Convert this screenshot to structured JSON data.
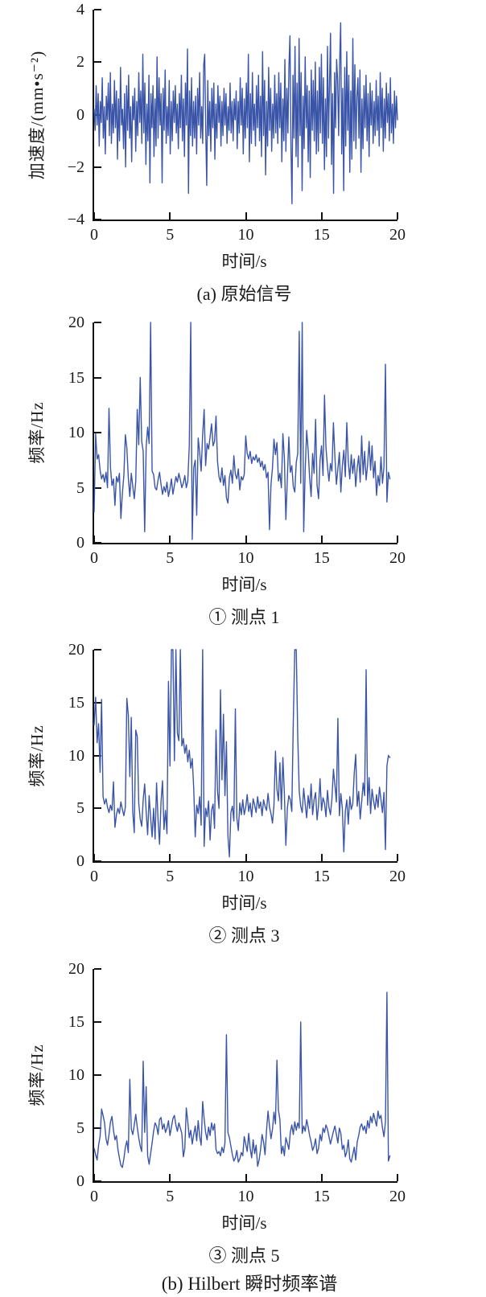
{
  "figure": {
    "line_color": "#3a55a8",
    "axis_color": "#111111",
    "group_caption": "(b) Hilbert 瞬时频率谱",
    "chart_data": [
      {
        "id": "original-signal",
        "type": "line",
        "title": "(a) 原始信号",
        "xlabel": "时间/s",
        "ylabel": "加速度/(mm•s⁻²)",
        "xlim": [
          0,
          20
        ],
        "ylim": [
          -4,
          4
        ],
        "grid": false,
        "legend": "none",
        "x_ticks": [
          {
            "v": 0,
            "label": "0"
          },
          {
            "v": 5,
            "label": "5"
          },
          {
            "v": 10,
            "label": "10"
          },
          {
            "v": 15,
            "label": "15"
          },
          {
            "v": 20,
            "label": "20"
          }
        ],
        "y_ticks": [
          {
            "v": -4,
            "label": "−4"
          },
          {
            "v": -2,
            "label": "−2"
          },
          {
            "v": 0,
            "label": "0"
          },
          {
            "v": 2,
            "label": "2"
          },
          {
            "v": 4,
            "label": "4"
          }
        ],
        "x_start": 0,
        "x_end": 20,
        "values": [
          0.2,
          -0.6,
          1.1,
          -0.4,
          0.8,
          -1.2,
          0.5,
          -0.3,
          1.4,
          -0.9,
          0.3,
          -1.5,
          0.7,
          -0.2,
          1.2,
          -0.8,
          1.6,
          -1.1,
          0.4,
          -0.7,
          1.3,
          -0.5,
          0.9,
          -1.7,
          0.6,
          -1.0,
          1.8,
          -0.4,
          0.2,
          -1.3,
          0.8,
          -2.0,
          1.1,
          -0.6,
          1.5,
          -0.9,
          0.3,
          -1.8,
          0.7,
          -0.2,
          1.0,
          -1.4,
          0.5,
          -0.8,
          1.6,
          -0.3,
          0.9,
          -1.1,
          2.3,
          -0.7,
          1.2,
          -1.9,
          0.4,
          -1.0,
          1.5,
          -2.6,
          0.8,
          -0.5,
          1.1,
          -1.6,
          0.6,
          -1.2,
          2.2,
          -0.9,
          1.4,
          -0.4,
          0.8,
          -2.6,
          1.0,
          -0.6,
          1.7,
          -1.1,
          0.3,
          -0.8,
          1.3,
          -1.5,
          0.5,
          -1.0,
          0.9,
          -0.3,
          1.1,
          -0.7,
          0.4,
          -1.3,
          0.8,
          -0.5,
          1.5,
          -1.0,
          0.6,
          -1.6,
          1.2,
          -0.4,
          2.5,
          -3.0,
          0.9,
          -0.8,
          1.4,
          -1.2,
          0.5,
          -0.9,
          0.7,
          -1.5,
          1.0,
          -0.4,
          1.6,
          -0.9,
          0.3,
          -1.1,
          1.9,
          2.3,
          -0.6,
          -2.7,
          1.3,
          -0.8,
          0.5,
          -1.4,
          1.0,
          -0.5,
          1.2,
          -1.7,
          0.4,
          -0.9,
          1.1,
          -0.3,
          0.7,
          -1.2,
          0.5,
          -0.8,
          1.0,
          -0.4,
          0.8,
          -1.1,
          0.3,
          -0.6,
          1.2,
          -0.7,
          0.5,
          -1.0,
          0.6,
          -0.2,
          0.9,
          -1.3,
          0.5,
          -0.7,
          1.4,
          -0.4,
          1.0,
          -1.5,
          0.6,
          -0.9,
          1.2,
          -0.5,
          2.3,
          -1.8,
          0.8,
          -1.1,
          1.6,
          -0.6,
          0.4,
          -1.2,
          1.1,
          -0.5,
          1.5,
          -1.0,
          0.7,
          -1.6,
          2.4,
          -0.8,
          1.3,
          -2.3,
          0.5,
          -1.2,
          1.8,
          -0.6,
          1.0,
          -1.4,
          0.4,
          -0.9,
          1.5,
          -0.7,
          0.8,
          -1.1,
          1.6,
          -0.5,
          1.2,
          -1.8,
          0.6,
          -1.0,
          2.1,
          -1.4,
          1.0,
          -0.7,
          1.8,
          3.0,
          -1.2,
          -3.4,
          1.5,
          -0.9,
          2.6,
          -1.6,
          1.2,
          -2.0,
          2.9,
          -0.8,
          1.6,
          -2.9,
          0.7,
          -1.3,
          2.2,
          -0.5,
          1.1,
          -1.8,
          0.9,
          -2.4,
          1.7,
          -0.6,
          1.3,
          -1.0,
          2.0,
          -1.5,
          0.9,
          -1.4,
          1.8,
          -0.7,
          2.3,
          -1.1,
          1.4,
          -2.1,
          0.6,
          -1.6,
          2.6,
          -0.9,
          1.2,
          3.1,
          -1.9,
          0.8,
          -3.0,
          1.6,
          -0.5,
          2.1,
          1.3,
          -0.8,
          2.0,
          3.5,
          -1.5,
          1.0,
          -2.9,
          1.8,
          -1.2,
          2.4,
          -0.6,
          1.5,
          -2.2,
          0.9,
          -1.7,
          2.9,
          -1.0,
          1.9,
          -1.3,
          0.7,
          1.4,
          -0.9,
          1.7,
          -2.2,
          0.6,
          -1.3,
          1.1,
          -0.5,
          1.5,
          -1.0,
          0.8,
          -1.6,
          1.2,
          -0.4,
          0.9,
          -1.1,
          0.5,
          -0.8,
          1.3,
          -0.6,
          0.7,
          -1.2,
          1.6,
          -0.5,
          1.0,
          -1.4,
          0.6,
          -0.9,
          1.2,
          -0.3,
          0.8,
          -1.0,
          1.4,
          -0.7,
          0.4,
          -1.1,
          0.9,
          -0.5,
          0.7,
          -0.2
        ]
      },
      {
        "id": "point-1",
        "type": "line",
        "title": "① 测点 1",
        "xlabel": "时间/s",
        "ylabel": "频率/Hz",
        "xlim": [
          0,
          20
        ],
        "ylim": [
          0,
          20
        ],
        "grid": false,
        "legend": "none",
        "x_ticks": [
          {
            "v": 0,
            "label": "0"
          },
          {
            "v": 5,
            "label": "5"
          },
          {
            "v": 10,
            "label": "10"
          },
          {
            "v": 15,
            "label": "15"
          },
          {
            "v": 20,
            "label": "20"
          }
        ],
        "y_ticks": [
          {
            "v": 0,
            "label": "0"
          },
          {
            "v": 5,
            "label": "5"
          },
          {
            "v": 10,
            "label": "10"
          },
          {
            "v": 15,
            "label": "15"
          },
          {
            "v": 20,
            "label": "20"
          }
        ],
        "x_start": 0,
        "x_end": 19.5,
        "values": [
          2.8,
          9.9,
          7.6,
          8.0,
          6.6,
          5.8,
          6.2,
          5.5,
          6.4,
          5.0,
          12.2,
          6.8,
          5.2,
          5.8,
          3.4,
          6.0,
          5.5,
          6.3,
          2.2,
          4.5,
          6.1,
          9.8,
          8.6,
          5.9,
          4.2,
          6.3,
          5.1,
          4.0,
          5.6,
          12.1,
          8.9,
          15.0,
          9.2,
          8.3,
          1.0,
          8.7,
          10.5,
          9.0,
          20.0,
          6.5,
          6.2,
          5.0,
          4.8,
          5.7,
          6.4,
          5.3,
          4.4,
          5.1,
          4.6,
          5.5,
          4.2,
          4.9,
          5.8,
          4.4,
          5.2,
          6.0,
          5.5,
          6.3,
          5.7,
          5.0,
          5.4,
          6.1,
          5.0,
          5.6,
          8.8,
          20.0,
          0.3,
          6.8,
          7.5,
          2.5,
          9.5,
          8.2,
          6.5,
          9.8,
          12.1,
          7.0,
          9.0,
          8.5,
          9.6,
          10.8,
          8.8,
          9.2,
          11.5,
          7.4,
          6.0,
          5.5,
          6.8,
          5.2,
          6.1,
          4.1,
          3.6,
          5.9,
          6.6,
          5.4,
          7.9,
          6.2,
          5.8,
          6.7,
          4.8,
          6.0,
          5.7,
          6.2,
          9.7,
          8.1,
          7.6,
          8.3,
          7.2,
          7.8,
          7.5,
          8.0,
          7.3,
          7.7,
          6.9,
          7.4,
          6.6,
          7.1,
          5.9,
          6.4,
          1.2,
          5.3,
          6.8,
          9.4,
          8.0,
          9.1,
          5.6,
          6.3,
          5.0,
          9.9,
          7.7,
          2.1,
          5.8,
          9.6,
          6.4,
          7.0,
          5.1,
          4.6,
          7.3,
          8.1,
          19.2,
          5.4,
          20.0,
          1.0,
          6.6,
          10.2,
          8.4,
          5.9,
          4.2,
          8.1,
          6.3,
          11.2,
          5.2,
          4.0,
          7.5,
          8.8,
          6.1,
          13.4,
          8.6,
          6.9,
          5.6,
          7.2,
          6.5,
          10.9,
          7.8,
          5.3,
          6.7,
          8.2,
          4.6,
          7.0,
          8.4,
          6.0,
          10.9,
          7.4,
          5.8,
          8.0,
          6.3,
          7.6,
          5.1,
          6.8,
          7.9,
          5.5,
          9.7,
          6.2,
          8.3,
          5.7,
          7.1,
          9.2,
          6.6,
          8.8,
          5.9,
          7.4,
          4.3,
          6.1,
          5.2,
          7.8,
          5.4,
          6.9,
          16.2,
          3.7,
          6.4,
          5.8
        ]
      },
      {
        "id": "point-3",
        "type": "line",
        "title": "② 测点 3",
        "xlabel": "时间/s",
        "ylabel": "频率/Hz",
        "xlim": [
          0,
          20
        ],
        "ylim": [
          0,
          20
        ],
        "grid": false,
        "legend": "none",
        "x_ticks": [
          {
            "v": 0,
            "label": "0"
          },
          {
            "v": 5,
            "label": "5"
          },
          {
            "v": 10,
            "label": "10"
          },
          {
            "v": 15,
            "label": "15"
          },
          {
            "v": 20,
            "label": "20"
          }
        ],
        "y_ticks": [
          {
            "v": 0,
            "label": "0"
          },
          {
            "v": 5,
            "label": "5"
          },
          {
            "v": 10,
            "label": "10"
          },
          {
            "v": 15,
            "label": "15"
          },
          {
            "v": 20,
            "label": "20"
          }
        ],
        "x_start": 0,
        "x_end": 19.5,
        "values": [
          12.9,
          15.5,
          11.2,
          13.0,
          8.4,
          15.3,
          6.1,
          5.4,
          5.9,
          5.1,
          4.6,
          5.3,
          4.8,
          7.5,
          3.2,
          4.4,
          5.0,
          4.5,
          5.6,
          4.9,
          4.3,
          5.1,
          15.4,
          13.8,
          8.0,
          13.6,
          4.6,
          2.7,
          12.4,
          11.8,
          5.5,
          4.0,
          3.3,
          5.8,
          7.3,
          4.7,
          2.5,
          6.2,
          4.1,
          2.3,
          5.0,
          2.1,
          7.4,
          3.9,
          1.6,
          5.6,
          7.6,
          3.0,
          4.8,
          2.6,
          17.0,
          9.0,
          20.0,
          20.0,
          9.5,
          20.0,
          12.1,
          11.4,
          20.0,
          10.9,
          11.6,
          10.2,
          11.0,
          9.4,
          10.5,
          8.8,
          9.7,
          6.9,
          2.3,
          5.3,
          4.5,
          6.1,
          3.4,
          20.0,
          1.4,
          5.0,
          4.2,
          5.7,
          2.0,
          4.8,
          5.4,
          3.1,
          12.4,
          6.6,
          5.0,
          16.2,
          7.7,
          13.9,
          6.2,
          11.3,
          2.4,
          0.4,
          4.6,
          5.2,
          3.8,
          14.4,
          4.1,
          2.9,
          5.5,
          4.4,
          5.8,
          4.4,
          5.1,
          6.3,
          4.7,
          5.5,
          4.2,
          5.9,
          5.3,
          4.6,
          6.1,
          5.0,
          5.6,
          4.3,
          5.8,
          5.2,
          4.8,
          6.4,
          5.1,
          4.5,
          3.6,
          5.3,
          10.4,
          6.8,
          5.7,
          9.3,
          4.9,
          9.8,
          6.4,
          1.5,
          5.0,
          6.2,
          5.8,
          4.7,
          13.2,
          20.0,
          20.0,
          11.8,
          6.6,
          5.2,
          4.6,
          6.9,
          5.4,
          4.1,
          6.2,
          5.0,
          7.3,
          4.4,
          5.8,
          6.5,
          3.9,
          5.3,
          7.8,
          4.8,
          6.0,
          5.5,
          4.2,
          6.7,
          5.1,
          4.4,
          5.9,
          8.7,
          7.2,
          5.6,
          13.5,
          4.3,
          6.4,
          5.0,
          0.9,
          4.7,
          5.8,
          3.5,
          6.1,
          4.9,
          5.4,
          8.3,
          10.1,
          5.2,
          6.6,
          4.0,
          5.6,
          7.4,
          6.2,
          18.1,
          5.3,
          7.9,
          4.5,
          6.8,
          5.7,
          4.9,
          6.3,
          5.1,
          7.0,
          5.8,
          4.6,
          6.5,
          1.1,
          9.0,
          10.0,
          9.8
        ]
      },
      {
        "id": "point-5",
        "type": "line",
        "title": "③ 测点 5",
        "xlabel": "时间/s",
        "ylabel": "频率/Hz",
        "xlim": [
          0,
          20
        ],
        "ylim": [
          0,
          20
        ],
        "grid": false,
        "legend": "none",
        "x_ticks": [
          {
            "v": 0,
            "label": "0"
          },
          {
            "v": 5,
            "label": "5"
          },
          {
            "v": 10,
            "label": "10"
          },
          {
            "v": 15,
            "label": "15"
          },
          {
            "v": 20,
            "label": "20"
          }
        ],
        "y_ticks": [
          {
            "v": 0,
            "label": "0"
          },
          {
            "v": 5,
            "label": "5"
          },
          {
            "v": 10,
            "label": "10"
          },
          {
            "v": 15,
            "label": "15"
          },
          {
            "v": 20,
            "label": "20"
          }
        ],
        "x_start": 0,
        "x_end": 19.5,
        "values": [
          3.1,
          2.5,
          2.0,
          3.4,
          4.2,
          6.8,
          6.2,
          5.5,
          4.0,
          3.4,
          4.4,
          5.6,
          6.1,
          4.8,
          3.9,
          4.3,
          3.0,
          2.2,
          1.5,
          1.3,
          2.1,
          3.2,
          3.8,
          2.7,
          9.6,
          4.9,
          4.4,
          5.3,
          6.3,
          5.1,
          4.1,
          3.3,
          2.8,
          11.3,
          4.6,
          8.9,
          2.4,
          1.6,
          2.6,
          3.6,
          4.7,
          5.5,
          5.2,
          4.4,
          5.8,
          6.0,
          4.9,
          5.4,
          4.6,
          5.0,
          5.7,
          4.3,
          5.1,
          5.9,
          6.2,
          5.3,
          4.7,
          5.5,
          5.0,
          4.5,
          2.3,
          3.1,
          6.9,
          5.6,
          4.1,
          4.8,
          3.5,
          4.4,
          5.2,
          3.8,
          5.7,
          4.2,
          3.4,
          7.5,
          5.9,
          4.6,
          3.9,
          5.1,
          4.3,
          5.5,
          4.8,
          5.4,
          3.0,
          2.6,
          2.8,
          2.4,
          3.2,
          2.7,
          3.6,
          13.8,
          4.6,
          4.1,
          3.3,
          2.5,
          1.9,
          2.2,
          2.9,
          1.8,
          2.1,
          2.7,
          2.4,
          4.2,
          3.5,
          2.8,
          4.5,
          3.1,
          2.2,
          3.9,
          2.6,
          3.4,
          1.4,
          2.0,
          3.0,
          4.4,
          3.7,
          2.5,
          4.8,
          6.6,
          5.2,
          4.0,
          4.9,
          6.5,
          5.4,
          11.4,
          6.7,
          5.8,
          2.6,
          3.3,
          2.4,
          4.1,
          3.6,
          3.0,
          4.6,
          5.3,
          4.4,
          5.6,
          4.8,
          5.5,
          5.0,
          15.0,
          4.5,
          5.2,
          4.7,
          5.8,
          5.1,
          4.3,
          3.7,
          2.9,
          3.3,
          4.0,
          2.6,
          3.1,
          4.4,
          3.8,
          5.0,
          4.6,
          5.3,
          4.9,
          4.2,
          3.5,
          4.1,
          4.7,
          5.2,
          4.4,
          3.6,
          5.0,
          4.5,
          3.0,
          3.4,
          2.3,
          2.8,
          3.9,
          2.1,
          1.8,
          2.5,
          3.2,
          2.0,
          3.7,
          4.3,
          5.1,
          5.4,
          4.8,
          5.2,
          4.5,
          5.7,
          5.0,
          6.1,
          5.5,
          6.4,
          5.8,
          5.2,
          6.6,
          5.9,
          6.2,
          5.0,
          4.2,
          5.6,
          17.8,
          1.9,
          2.4
        ]
      }
    ]
  }
}
